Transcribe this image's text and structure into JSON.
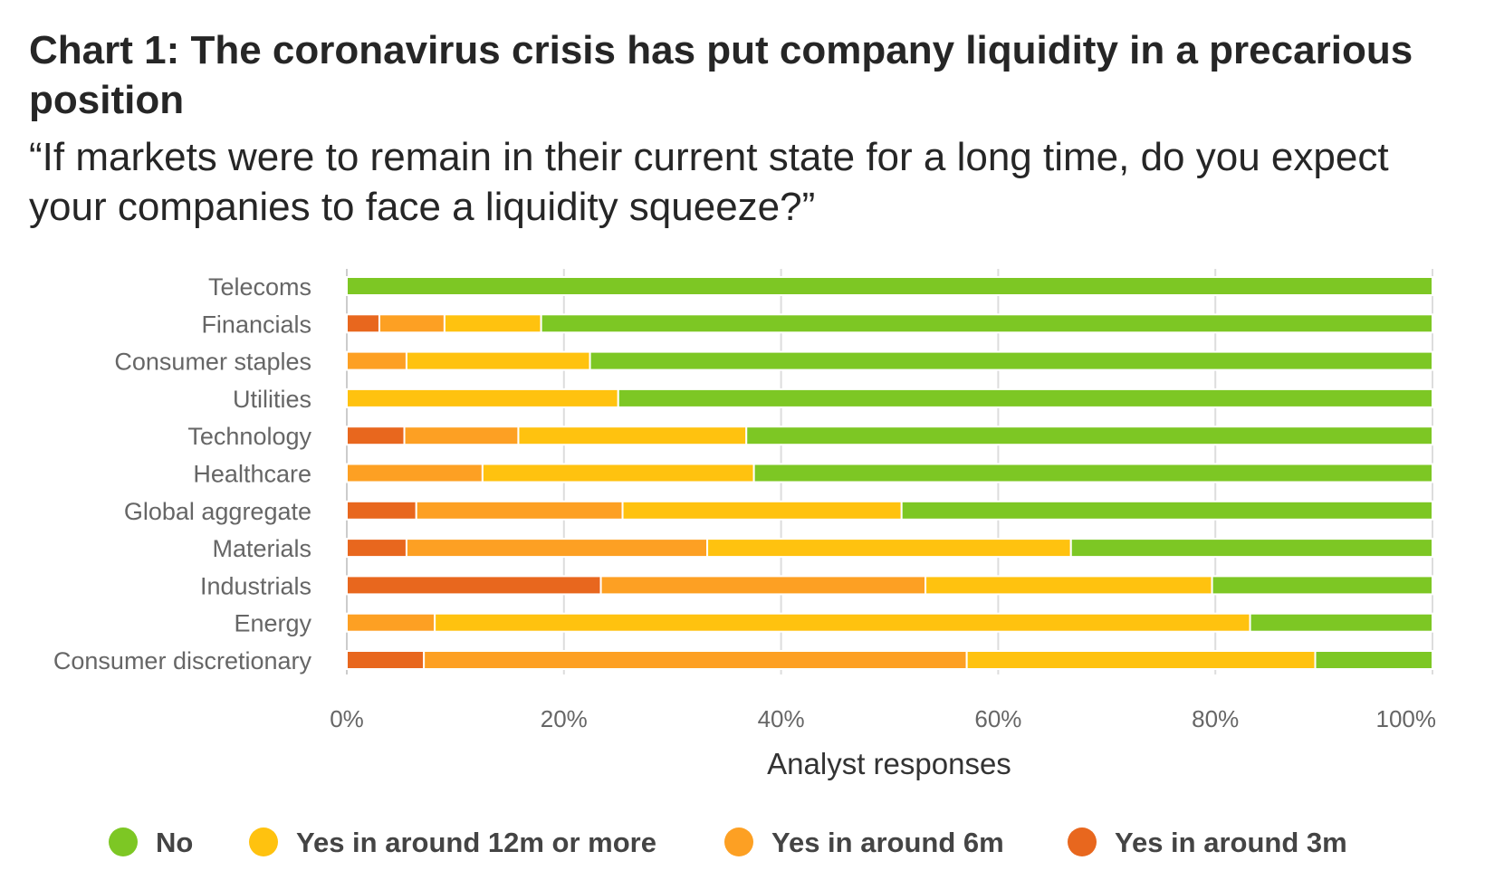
{
  "chart_data": {
    "type": "bar",
    "orientation": "horizontal",
    "stacked": true,
    "title": "Chart 1: The coronavirus crisis has put company liquidity in a precarious position",
    "subtitle": "“If markets were to remain in their current state for a long time, do you expect your companies to face a liquidity squeeze?”",
    "xlabel": "Analyst responses",
    "ylabel": "",
    "xlim": [
      0,
      100
    ],
    "x_ticks": [
      "0%",
      "20%",
      "40%",
      "60%",
      "80%",
      "100%"
    ],
    "grid": true,
    "legend_position": "bottom",
    "categories": [
      "Telecoms",
      "Financials",
      "Consumer staples",
      "Utilities",
      "Technology",
      "Healthcare",
      "Global aggregate",
      "Materials",
      "Industrials",
      "Energy",
      "Consumer discretionary"
    ],
    "series": [
      {
        "name": "Yes in around 3m",
        "color": "#E8671E",
        "values": [
          0,
          3,
          0,
          0,
          5.3,
          0,
          6.4,
          5.5,
          23.4,
          0,
          7.1
        ]
      },
      {
        "name": "Yes in around 6m",
        "color": "#FDA023",
        "values": [
          0,
          6,
          5.5,
          0,
          10.5,
          12.5,
          19,
          27.7,
          29.9,
          8.1,
          50
        ]
      },
      {
        "name": "Yes in around 12m or more",
        "color": "#FFC20F",
        "values": [
          0,
          8.9,
          16.9,
          25,
          21,
          25,
          25.7,
          33.5,
          26.4,
          75.1,
          32.1
        ]
      },
      {
        "name": "No",
        "color": "#7DC724",
        "values": [
          100,
          82.1,
          77.6,
          75,
          63.2,
          62.5,
          48.9,
          33.3,
          20.3,
          16.8,
          10.8
        ]
      }
    ],
    "legend": [
      {
        "name": "No",
        "color": "#7DC724"
      },
      {
        "name": "Yes in around 12m or more",
        "color": "#FFC20F"
      },
      {
        "name": "Yes in around 6m",
        "color": "#FDA023"
      },
      {
        "name": "Yes in around 3m",
        "color": "#E8671E"
      }
    ]
  }
}
